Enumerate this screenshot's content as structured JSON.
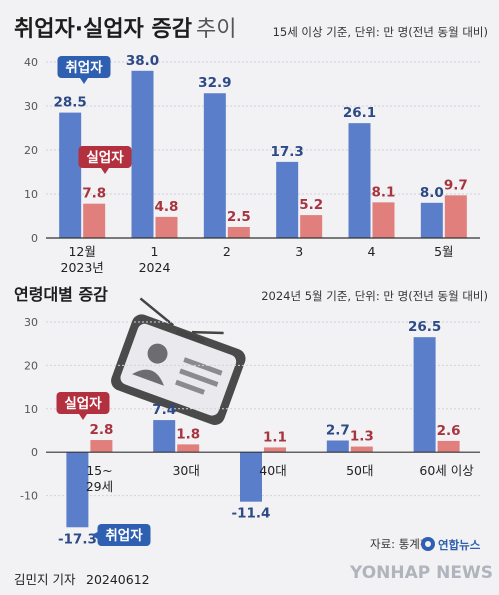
{
  "header": {
    "title_bold": "취업자·실업자 증감",
    "title_light": "추이",
    "note": "15세 이상 기준, 단위: 만 명(전년 동월 대비)"
  },
  "section2": {
    "title": "연령대별 증감",
    "note": "2024년 5월 기준, 단위: 만 명(전년 동월 대비)"
  },
  "legend": {
    "employed": "취업자",
    "unemployed": "실업자"
  },
  "colors": {
    "employed": "#5b7ecb",
    "unemployed": "#e07f7b",
    "employed_label_bg": "#2e5fb0",
    "unemployed_label_bg": "#b3303e"
  },
  "footer": {
    "author": "김민지 기자",
    "date": "20240612",
    "source": "자료: 통계청",
    "agency": "연합뉴스",
    "watermark": "YONHAP NEWS"
  },
  "chart_data": [
    {
      "type": "bar",
      "categories": [
        "12월\n2023년",
        "1\n2024",
        "2",
        "3",
        "4",
        "5월"
      ],
      "ylim": [
        0,
        40
      ],
      "yticks": [
        0,
        10,
        20,
        30,
        40
      ],
      "series": [
        {
          "name": "취업자",
          "values": [
            28.5,
            38.0,
            32.9,
            17.3,
            26.1,
            8.0
          ],
          "labels": [
            "28.5",
            "38.0",
            "32.9",
            "17.3",
            "26.1",
            "8.0"
          ]
        },
        {
          "name": "실업자",
          "values": [
            7.8,
            4.8,
            2.5,
            5.2,
            8.1,
            9.7
          ],
          "labels": [
            "7.8",
            "4.8",
            "2.5",
            "5.2",
            "8.1",
            "9.7"
          ]
        }
      ]
    },
    {
      "type": "bar",
      "categories": [
        "15~\n29세",
        "30대",
        "40대",
        "50대",
        "60세 이상"
      ],
      "ylim": [
        -20,
        30
      ],
      "yticks": [
        -10,
        0,
        10,
        20,
        30
      ],
      "series": [
        {
          "name": "취업자",
          "values": [
            -17.3,
            7.4,
            -11.4,
            2.7,
            26.5
          ],
          "labels": [
            "-17.3",
            "7.4",
            "-11.4",
            "2.7",
            "26.5"
          ]
        },
        {
          "name": "실업자",
          "values": [
            2.8,
            1.8,
            1.1,
            1.3,
            2.6
          ],
          "labels": [
            "2.8",
            "1.8",
            "1.1",
            "1.3",
            "2.6"
          ]
        }
      ]
    }
  ]
}
